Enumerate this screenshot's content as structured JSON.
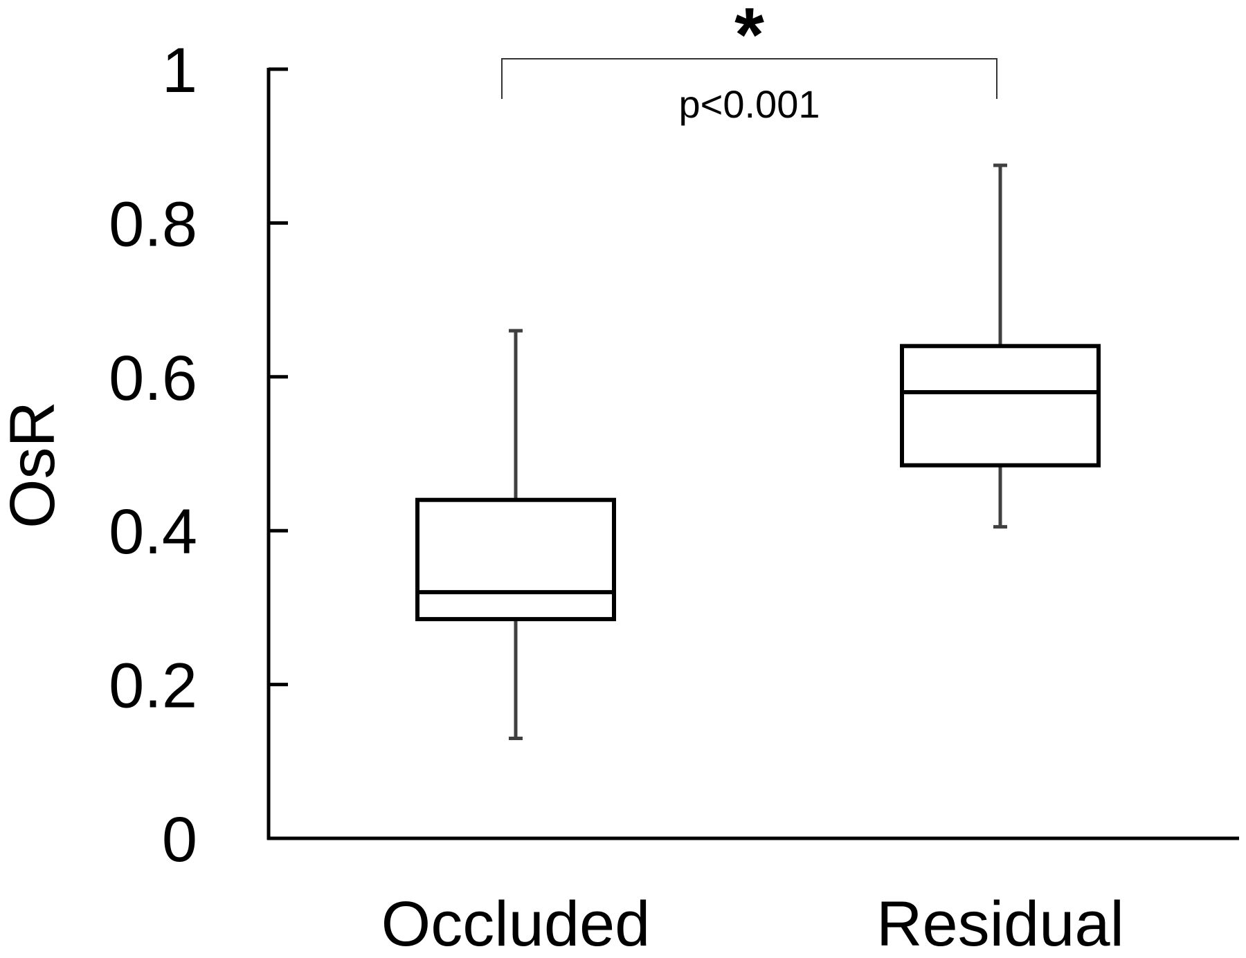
{
  "chart_data": {
    "type": "boxplot",
    "title": "",
    "xlabel": "",
    "ylabel": "OsR",
    "ylim": [
      0,
      1
    ],
    "yticks": [
      0,
      0.2,
      0.4,
      0.6,
      0.8,
      1
    ],
    "ytick_labels": [
      "0",
      "0.2",
      "0.4",
      "0.6",
      "0.8",
      "1"
    ],
    "categories": [
      "Occluded",
      "Residual"
    ],
    "boxes": [
      {
        "category": "Occluded",
        "whisker_low": 0.13,
        "q1": 0.285,
        "median": 0.32,
        "q3": 0.44,
        "whisker_high": 0.66
      },
      {
        "category": "Residual",
        "whisker_low": 0.405,
        "q1": 0.485,
        "median": 0.58,
        "q3": 0.64,
        "whisker_high": 0.875
      }
    ],
    "annotation": {
      "star": "*",
      "text": "p<0.001",
      "between": [
        "Occluded",
        "Residual"
      ]
    },
    "grid": false,
    "legend": "none",
    "colors": {
      "axis": "#000000",
      "box": "#000000",
      "whisker": "#404040",
      "background": "#ffffff"
    }
  }
}
